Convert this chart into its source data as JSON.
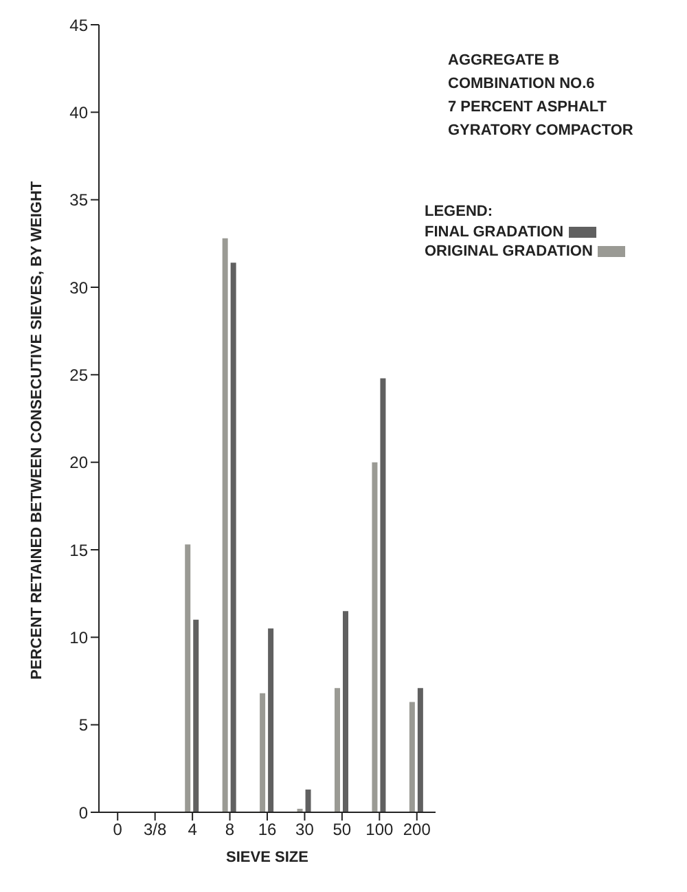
{
  "chart_data": {
    "type": "bar",
    "xlabel": "SIEVE SIZE",
    "ylabel": "PERCENT RETAINED BETWEEN CONSECUTIVE SIEVES, BY WEIGHT",
    "categories": [
      "0",
      "3/8",
      "4",
      "8",
      "16",
      "30",
      "50",
      "100",
      "200"
    ],
    "series": [
      {
        "name": "ORIGINAL GRADATION",
        "color": "#9a9a94",
        "values": [
          null,
          null,
          15.3,
          32.8,
          6.8,
          0.2,
          7.1,
          20.0,
          6.3
        ]
      },
      {
        "name": "FINAL GRADATION",
        "color": "#606060",
        "values": [
          null,
          null,
          11.0,
          31.4,
          10.5,
          1.3,
          11.5,
          24.8,
          7.1
        ]
      }
    ],
    "ylim": [
      0,
      45
    ],
    "yticks": [
      0,
      5,
      10,
      15,
      20,
      25,
      30,
      35,
      40,
      45
    ],
    "grid": false,
    "legend": "top right",
    "legend_title": "LEGEND:",
    "annotations": [
      "AGGREGATE B",
      "COMBINATION NO.6",
      "7 PERCENT ASPHALT",
      "GYRATORY COMPACTOR"
    ]
  }
}
